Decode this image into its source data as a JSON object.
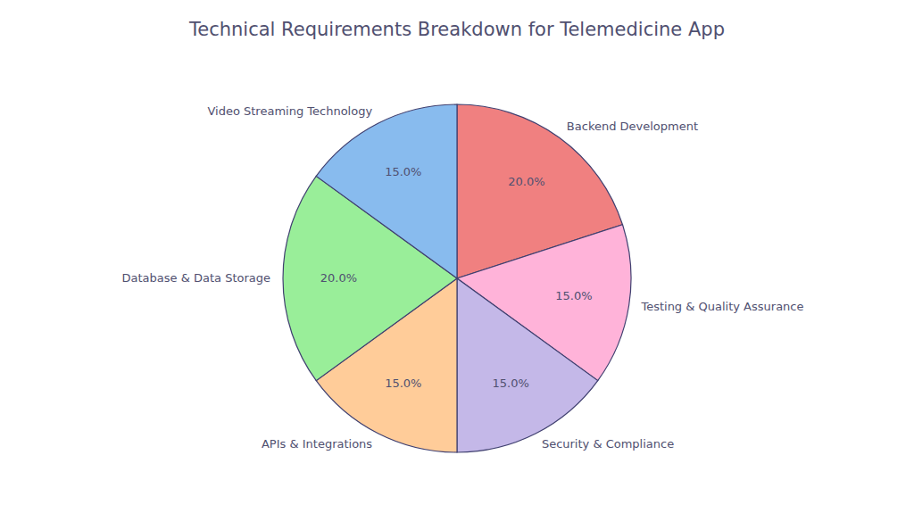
{
  "chart_data": {
    "type": "pie",
    "title": "Technical Requirements Breakdown for Telemedicine App",
    "categories": [
      "Backend Development",
      "Testing & Quality Assurance",
      "Security & Compliance",
      "APIs & Integrations",
      "Database & Data Storage",
      "Video Streaming Technology"
    ],
    "values": [
      20.0,
      15.0,
      15.0,
      15.0,
      20.0,
      15.0
    ],
    "value_labels": [
      "20.0%",
      "15.0%",
      "15.0%",
      "15.0%",
      "20.0%",
      "15.0%"
    ],
    "colors": [
      "#F08080",
      "#FFB3D9",
      "#C4B8E8",
      "#FFCC99",
      "#99EE99",
      "#88BBEE"
    ],
    "data_labels": true
  }
}
